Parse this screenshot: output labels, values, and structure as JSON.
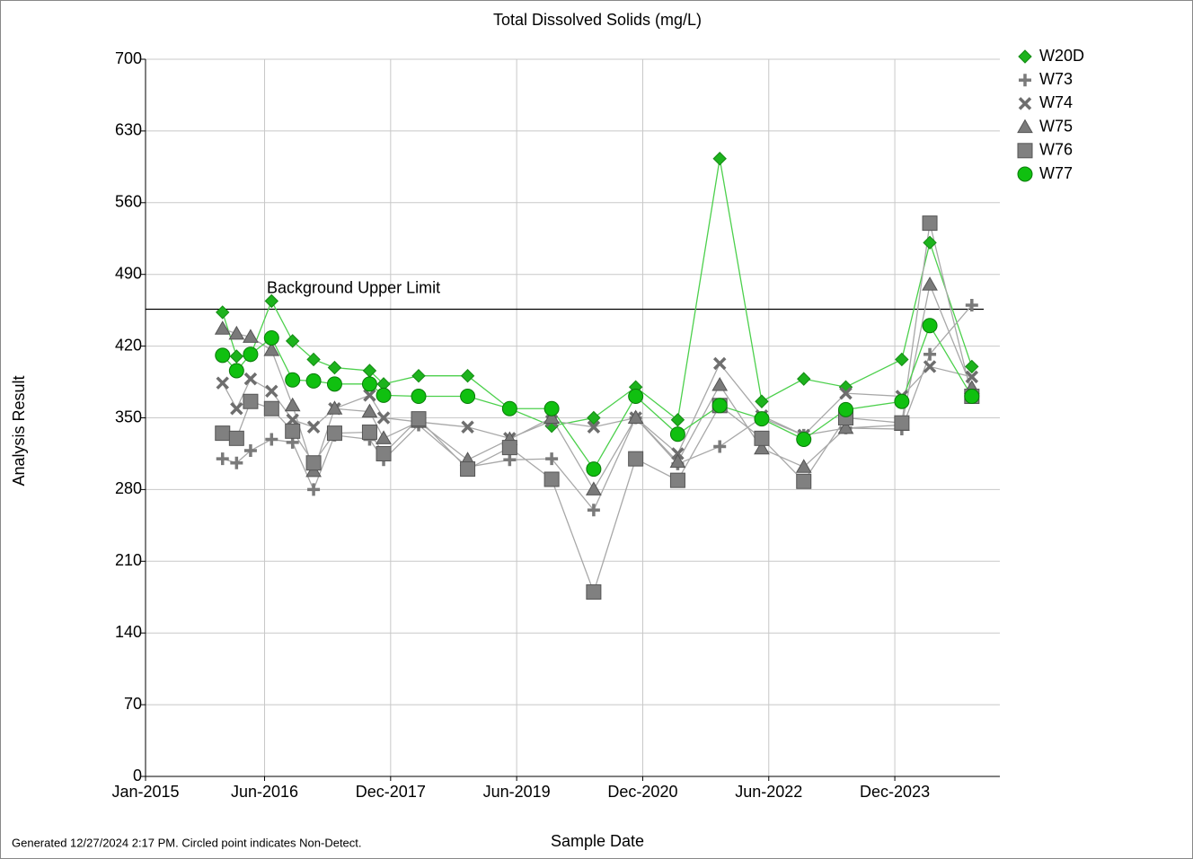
{
  "chart_data": {
    "type": "line",
    "title": "Total Dissolved Solids (mg/L)",
    "x_label": "Sample Date",
    "y_label": "Analysis Result",
    "footnote": "Generated 12/27/2024 2:17 PM. Circled point indicates Non-Detect.",
    "x": [
      "2015-12",
      "2016-02",
      "2016-04",
      "2016-07",
      "2016-10",
      "2017-01",
      "2017-04",
      "2017-09",
      "2017-11",
      "2018-04",
      "2018-11",
      "2019-05",
      "2019-11",
      "2020-05",
      "2020-11",
      "2021-05",
      "2021-11",
      "2022-05",
      "2022-11",
      "2023-05",
      "2024-01",
      "2024-05",
      "2024-11"
    ],
    "xlim": [
      "2015-01",
      "2025-03"
    ],
    "xticks": [
      {
        "value": "2015-01",
        "label": "Jan-2015"
      },
      {
        "value": "2016-06",
        "label": "Jun-2016"
      },
      {
        "value": "2017-12",
        "label": "Dec-2017"
      },
      {
        "value": "2019-06",
        "label": "Jun-2019"
      },
      {
        "value": "2020-12",
        "label": "Dec-2020"
      },
      {
        "value": "2022-06",
        "label": "Jun-2022"
      },
      {
        "value": "2023-12",
        "label": "Dec-2023"
      }
    ],
    "ylim": [
      0,
      700
    ],
    "yticks": [
      0,
      70,
      140,
      210,
      280,
      350,
      420,
      490,
      560,
      630,
      700
    ],
    "grid": true,
    "threshold": {
      "label": "Background Upper Limit",
      "value": 456
    },
    "series": [
      {
        "name": "W20D",
        "color": "#1db31d",
        "line_color": "#4cd04c",
        "marker": "diamond",
        "values": [
          453,
          410,
          411,
          464,
          425,
          407,
          399,
          396,
          383,
          391,
          391,
          359,
          342,
          350,
          380,
          348,
          603,
          366,
          388,
          380,
          407,
          521,
          400
        ]
      },
      {
        "name": "W73",
        "color": "#7a7a7a",
        "line_color": "#a8a8a8",
        "marker": "plus",
        "values": [
          310,
          306,
          318,
          329,
          326,
          280,
          333,
          329,
          309,
          343,
          302,
          309,
          310,
          260,
          350,
          305,
          322,
          350,
          333,
          340,
          339,
          412,
          460
        ]
      },
      {
        "name": "W74",
        "color": "#6e6e6e",
        "line_color": "#a8a8a8",
        "marker": "cross",
        "values": [
          384,
          359,
          388,
          376,
          348,
          341,
          359,
          372,
          350,
          346,
          341,
          330,
          347,
          341,
          350,
          315,
          403,
          352,
          333,
          374,
          371,
          400,
          390
        ]
      },
      {
        "name": "W75",
        "color": "#7a7a7a",
        "line_color": "#a8a8a8",
        "marker": "triangle",
        "values": [
          437,
          432,
          429,
          416,
          362,
          298,
          359,
          356,
          330,
          346,
          309,
          329,
          350,
          280,
          350,
          307,
          382,
          320,
          302,
          340,
          343,
          480,
          379
        ]
      },
      {
        "name": "W76",
        "color": "#808080",
        "line_color": "#a8a8a8",
        "marker": "square",
        "values": [
          335,
          330,
          366,
          359,
          337,
          306,
          335,
          336,
          315,
          349,
          300,
          321,
          290,
          180,
          310,
          289,
          362,
          330,
          288,
          350,
          345,
          540,
          371
        ]
      },
      {
        "name": "W77",
        "color": "#10c010",
        "line_color": "#4cd04c",
        "marker": "circle",
        "values": [
          411,
          396,
          412,
          428,
          387,
          386,
          383,
          383,
          372,
          371,
          371,
          359,
          359,
          300,
          371,
          334,
          362,
          349,
          329,
          358,
          366,
          440,
          371
        ]
      }
    ],
    "legend": "top-right"
  }
}
